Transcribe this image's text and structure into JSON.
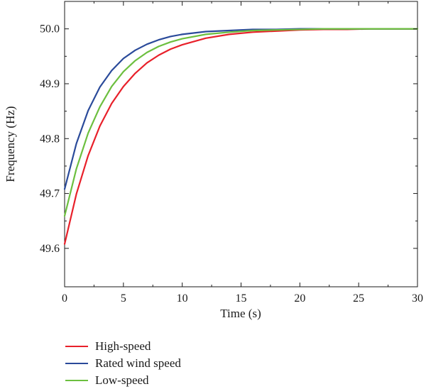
{
  "chart_data": {
    "type": "line",
    "xlabel": "Time (s)",
    "ylabel": "Frequency (Hz)",
    "xlim": [
      0,
      30
    ],
    "ylim": [
      49.53,
      50.05
    ],
    "x_ticks": [
      0,
      5,
      10,
      15,
      20,
      25,
      30
    ],
    "x_tick_labels": [
      "0",
      "5",
      "10",
      "15",
      "20",
      "25",
      "30"
    ],
    "y_ticks": [
      49.6,
      49.7,
      49.8,
      49.9,
      50.0
    ],
    "y_tick_labels": [
      "49.6",
      "49.7",
      "49.8",
      "49.9",
      "50.0"
    ],
    "grid": false,
    "legend_position": "below",
    "x": [
      0,
      1,
      2,
      3,
      4,
      5,
      6,
      7,
      8,
      9,
      10,
      12,
      14,
      16,
      18,
      20,
      22,
      24,
      26,
      28,
      30
    ],
    "series": [
      {
        "name": "High-speed",
        "color": "#e8202a",
        "values": [
          49.608,
          49.699,
          49.769,
          49.823,
          49.864,
          49.895,
          49.919,
          49.938,
          49.952,
          49.963,
          49.971,
          49.983,
          49.99,
          49.994,
          49.996,
          49.998,
          49.999,
          49.999,
          50.0,
          50.0,
          50.0
        ]
      },
      {
        "name": "Rated wind speed",
        "color": "#2a4a9a",
        "values": [
          49.708,
          49.791,
          49.851,
          49.894,
          49.924,
          49.946,
          49.961,
          49.972,
          49.98,
          49.986,
          49.99,
          49.995,
          49.997,
          49.999,
          49.999,
          50.0,
          50.0,
          50.0,
          50.0,
          50.0,
          50.0
        ]
      },
      {
        "name": "Low-speed",
        "color": "#6cbf3f",
        "values": [
          49.659,
          49.745,
          49.81,
          49.858,
          49.895,
          49.922,
          49.942,
          49.957,
          49.968,
          49.976,
          49.982,
          49.99,
          49.994,
          49.997,
          49.998,
          49.999,
          50.0,
          50.0,
          50.0,
          50.0,
          50.0
        ]
      }
    ]
  }
}
